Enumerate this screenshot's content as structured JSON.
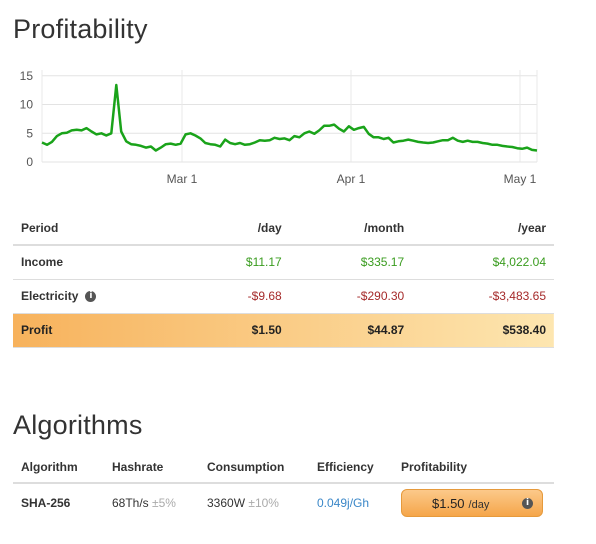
{
  "profitability_section": {
    "title": "Profitability"
  },
  "chart_data": {
    "type": "line",
    "x_tick_labels": [
      "Mar 1",
      "Apr 1",
      "May 1"
    ],
    "y_ticks": [
      "15",
      "10",
      "5",
      "0"
    ],
    "ylim": [
      0,
      16
    ],
    "grid": true,
    "color": "#1aa31a",
    "series": [
      {
        "values": [
          3.4,
          3.0,
          3.5,
          4.5,
          5.0,
          5.1,
          5.5,
          5.6,
          5.5,
          5.9,
          5.3,
          4.8,
          5.0,
          4.6,
          5.0,
          13.4,
          5.3,
          3.6,
          3.1,
          3.0,
          2.8,
          2.5,
          2.7,
          2.0,
          2.5,
          3.1,
          3.2,
          3.0,
          3.2,
          4.8,
          5.0,
          4.6,
          4.1,
          3.3,
          3.1,
          3.0,
          2.7,
          3.9,
          3.3,
          3.1,
          3.3,
          3.0,
          3.1,
          3.4,
          3.8,
          3.7,
          3.8,
          4.2,
          4.0,
          4.1,
          3.8,
          4.5,
          4.3,
          5.0,
          5.3,
          4.9,
          5.5,
          6.3,
          6.3,
          6.5,
          5.8,
          5.3,
          6.2,
          5.6,
          5.9,
          6.1,
          4.9,
          4.3,
          4.3,
          4.0,
          4.2,
          3.4,
          3.6,
          3.7,
          3.9,
          3.7,
          3.5,
          3.4,
          3.3,
          3.4,
          3.6,
          3.8,
          3.8,
          4.2,
          3.7,
          3.5,
          3.7,
          3.5,
          3.5,
          3.3,
          3.2,
          3.0,
          3.0,
          2.8,
          2.7,
          2.6,
          2.4,
          2.3,
          2.5,
          2.1,
          2.0
        ]
      }
    ]
  },
  "profit_table": {
    "headers": [
      "Period",
      "/day",
      "/month",
      "/year"
    ],
    "rows": [
      {
        "label": "Income",
        "cells": [
          "$11.17",
          "$335.17",
          "$4,022.04"
        ]
      },
      {
        "label": "Electricity",
        "cells": [
          "-$9.68",
          "-$290.30",
          "-$3,483.65"
        ]
      },
      {
        "label": "Profit",
        "cells": [
          "$1.50",
          "$44.87",
          "$538.40"
        ]
      }
    ],
    "info_icon": "info-circle-icon"
  },
  "algorithms_section": {
    "title": "Algorithms",
    "headers": [
      "Algorithm",
      "Hashrate",
      "Consumption",
      "Efficiency",
      "Profitability"
    ],
    "row": {
      "algorithm": "SHA-256",
      "hashrate": "68Th/s",
      "hashrate_tol": "±5%",
      "consumption": "3360W",
      "consumption_tol": "±10%",
      "efficiency": "0.049j/Gh",
      "profit_amount": "$1.50",
      "profit_unit": "/day",
      "info_icon": "info-circle-icon"
    }
  },
  "colors": {
    "positive": "#3a9c1f",
    "negative": "#a52a2a",
    "accent": "#f5a64a",
    "line": "#1aa31a"
  }
}
